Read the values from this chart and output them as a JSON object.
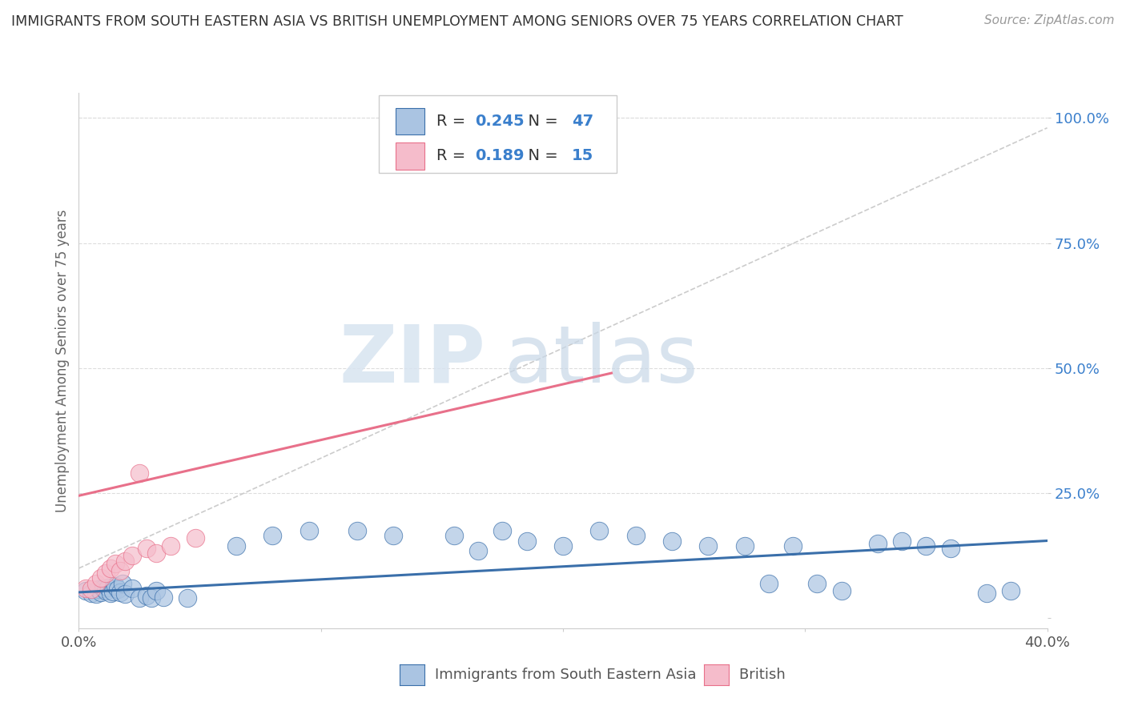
{
  "title": "IMMIGRANTS FROM SOUTH EASTERN ASIA VS BRITISH UNEMPLOYMENT AMONG SENIORS OVER 75 YEARS CORRELATION CHART",
  "source": "Source: ZipAtlas.com",
  "ylabel": "Unemployment Among Seniors over 75 years",
  "xlim": [
    0.0,
    0.4
  ],
  "ylim": [
    -0.02,
    1.05
  ],
  "blue_R": "0.245",
  "blue_N": "47",
  "pink_R": "0.189",
  "pink_N": "15",
  "blue_color": "#aac4e2",
  "pink_color": "#f5bccb",
  "blue_line_color": "#3a6faa",
  "pink_line_color": "#e8708a",
  "watermark_zip": "ZIP",
  "watermark_atlas": "atlas",
  "label_blue": "Immigrants from South Eastern Asia",
  "label_pink": "British",
  "R_eq_color": "#333333",
  "R_val_color": "#3a7fcc",
  "N_eq_color": "#333333",
  "N_val_color": "#3a7fcc",
  "title_color": "#333333",
  "source_color": "#999999",
  "blue_scatter_x": [
    0.003,
    0.005,
    0.007,
    0.008,
    0.009,
    0.01,
    0.011,
    0.012,
    0.013,
    0.014,
    0.015,
    0.016,
    0.017,
    0.018,
    0.019,
    0.022,
    0.025,
    0.028,
    0.03,
    0.032,
    0.035,
    0.045,
    0.065,
    0.08,
    0.095,
    0.115,
    0.13,
    0.155,
    0.165,
    0.175,
    0.185,
    0.2,
    0.215,
    0.23,
    0.245,
    0.26,
    0.275,
    0.285,
    0.295,
    0.305,
    0.315,
    0.33,
    0.34,
    0.35,
    0.36,
    0.375,
    0.385
  ],
  "blue_scatter_y": [
    0.055,
    0.05,
    0.048,
    0.058,
    0.052,
    0.06,
    0.055,
    0.062,
    0.05,
    0.053,
    0.065,
    0.058,
    0.052,
    0.07,
    0.048,
    0.06,
    0.04,
    0.045,
    0.04,
    0.055,
    0.042,
    0.04,
    0.145,
    0.165,
    0.175,
    0.175,
    0.165,
    0.165,
    0.135,
    0.175,
    0.155,
    0.145,
    0.175,
    0.165,
    0.155,
    0.145,
    0.145,
    0.07,
    0.145,
    0.07,
    0.055,
    0.15,
    0.155,
    0.145,
    0.14,
    0.05,
    0.055
  ],
  "pink_scatter_x": [
    0.003,
    0.005,
    0.007,
    0.009,
    0.011,
    0.013,
    0.015,
    0.017,
    0.019,
    0.022,
    0.025,
    0.028,
    0.032,
    0.038,
    0.048
  ],
  "pink_scatter_y": [
    0.06,
    0.058,
    0.07,
    0.08,
    0.09,
    0.1,
    0.11,
    0.095,
    0.115,
    0.125,
    0.29,
    0.14,
    0.13,
    0.145,
    0.16
  ],
  "blue_trend_x": [
    0.0,
    0.4
  ],
  "blue_trend_y": [
    0.052,
    0.155
  ],
  "pink_trend_x": [
    0.0,
    0.22
  ],
  "pink_trend_y": [
    0.245,
    0.49
  ],
  "diag_trend_x": [
    0.0,
    0.4
  ],
  "diag_trend_y": [
    0.1,
    0.98
  ]
}
